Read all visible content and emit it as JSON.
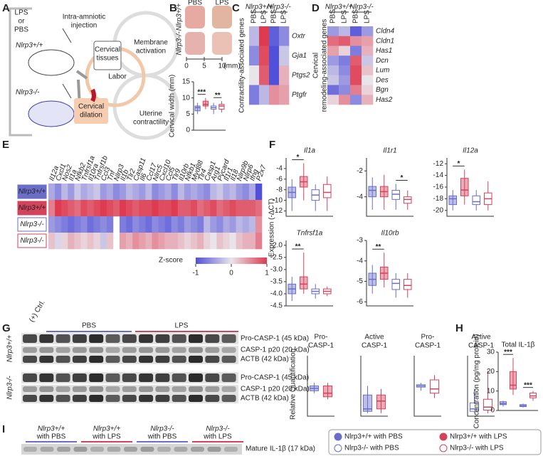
{
  "panel_labels": [
    "A",
    "B",
    "C",
    "D",
    "E",
    "F",
    "G",
    "H",
    "I"
  ],
  "group_styles": [
    {
      "name": "Nlrp3+/+ with PBS",
      "color": "#6a6ec8",
      "filled": true
    },
    {
      "name": "Nlrp3+/+ with LPS",
      "color": "#d2435c",
      "filled": true
    },
    {
      "name": "Nlrp3-/- with PBS",
      "color": "#6a6ec8",
      "filled": false
    },
    {
      "name": "Nlrp3-/- with LPS",
      "color": "#d2435c",
      "filled": false
    }
  ],
  "panel_a": {
    "lps": "LPS",
    "or": "or",
    "pbs": "PBS",
    "injection": [
      "Intra-amniotic",
      "injection"
    ],
    "wt": "Nlrp3+/+",
    "ko": "Nlrp3-/-",
    "tissues": [
      "Cervical",
      "tissues"
    ],
    "labor": "Labor",
    "dilation": [
      "Cervical",
      "dilation"
    ],
    "membrane": [
      "Membrane",
      "activation"
    ],
    "uterine": [
      "Uterine",
      "contractility"
    ]
  },
  "panel_b_photo": {
    "columns": [
      "PBS",
      "LPS"
    ],
    "row_labels": [
      "Nlrp3+/+",
      "Nlrp3-/-"
    ],
    "scale_ticks": [
      0,
      5,
      10
    ],
    "scale_unit": "(mm)"
  },
  "blot_g": {
    "control": "(+) Ctrl.",
    "treatments": [
      "PBS",
      "LPS"
    ],
    "genotypes": [
      "Nlrp3+/+",
      "Nlrp3-/-"
    ],
    "bands": [
      "Pro-CASP-1 (45 kDa)",
      "CASP-1 p20 (20 kDa)",
      "ACTB (42 kDa)"
    ]
  },
  "blot_i": {
    "lanes": [
      [
        "Nlrp3+/+",
        "with PBS"
      ],
      [
        "Nlrp3+/+",
        "with LPS"
      ],
      [
        "Nlrp3-/-",
        "with PBS"
      ],
      [
        "Nlrp3-/-",
        "with LPS"
      ]
    ],
    "band": "Mature IL-1β (17 kDa)"
  },
  "panel_f_ylabel": "Expression (-ΔCT)",
  "panel_g_ylabel": "Relative Quantification",
  "chart_data": [
    {
      "type": "box",
      "ylabel": "Cervical width (mm)",
      "ylim": [
        0,
        15
      ],
      "yticks": [
        0,
        5,
        10,
        15
      ],
      "boxes": [
        [
          5,
          6,
          7,
          7.5,
          8.5
        ],
        [
          6.5,
          7.5,
          8,
          9,
          10
        ],
        [
          5,
          6.5,
          7,
          7.5,
          8.5
        ],
        [
          5.5,
          6.5,
          7.5,
          8,
          9
        ]
      ],
      "sig": [
        {
          "label": "***",
          "between": [
            0,
            1
          ]
        },
        {
          "label": "**",
          "between": [
            2,
            3
          ]
        }
      ]
    },
    {
      "type": "heatmap",
      "ylabel_lines": [
        "Contractility-associated genes"
      ],
      "column_groups": [
        "Nlrp3+/+",
        "Nlrp3-/-"
      ],
      "columns": [
        "PBS",
        "LPS",
        "PBS",
        "LPS"
      ],
      "rows": [
        "Oxtr",
        "Gja1",
        "Ptgs2",
        "Ptgfr"
      ],
      "clim": [
        -1,
        1
      ],
      "colormap": [
        "#5050d8",
        "#e9e4ea",
        "#de3a50"
      ],
      "values": [
        [
          -0.3,
          1,
          -0.9,
          -0.6
        ],
        [
          -0.6,
          0.9,
          -1,
          -0.2
        ],
        [
          0,
          0.8,
          -1,
          0.3
        ],
        [
          -0.7,
          -0.3,
          0.5,
          0.4
        ]
      ]
    },
    {
      "type": "heatmap",
      "ylabel_lines": [
        "Cervical",
        "remodeling-associated genes"
      ],
      "column_groups": [
        "Nlrp3+/+",
        "Nlrp3-/-"
      ],
      "columns": [
        "PBS",
        "LPS",
        "PBS",
        "LPS"
      ],
      "rows": [
        "Cldn4",
        "Cldn1",
        "Has1",
        "Dcn",
        "Lum",
        "Des",
        "Bgn",
        "Has2"
      ],
      "clim": [
        -1,
        1
      ],
      "colormap": [
        "#5050d8",
        "#e9e4ea",
        "#de3a50"
      ],
      "values": [
        [
          -0.5,
          -0.3,
          -0.9,
          -0.5
        ],
        [
          0.7,
          0.8,
          0.5,
          0.4
        ],
        [
          0.4,
          0.1,
          -0.7,
          0.3
        ],
        [
          -0.5,
          -0.7,
          0.8,
          -0.2
        ],
        [
          -0.3,
          -0.6,
          0.9,
          0.2
        ],
        [
          -0.2,
          -0.5,
          0.9,
          0
        ],
        [
          -0.8,
          -0.6,
          0.6,
          0.1
        ],
        [
          0.1,
          0.5,
          -0.6,
          0.3
        ]
      ]
    },
    {
      "type": "heatmap",
      "rows": [
        "Nlrp3+/+",
        "Nlrp3+/+",
        "Nlrp3-/-",
        "Nlrp3-/-"
      ],
      "columns": [
        "Il12a",
        "Cxcl1",
        "Nos2",
        "Il1a",
        "Nfkb2",
        "Tnfrsf1a",
        "Il10ra",
        "Tnfrsf1b",
        "Ccl3",
        "Tnf",
        "Nlrp3",
        "Il1b",
        "Tlr2",
        "Casp11",
        "Il6",
        "Ccl17",
        "Nlrc5",
        "Cxcl10",
        "Ccl5",
        "Tlr9",
        "Il10rb",
        "Nfkb1",
        "Myd88",
        "Tlr4",
        "Casp1",
        "Arg1",
        "Pycard",
        "Il1r1",
        "Il18",
        "Nlrp9b",
        "Nlrp6",
        "Ifng",
        "P2x7"
      ],
      "clim": [
        -1,
        1
      ],
      "colormap": [
        "#5050d8",
        "#e9e4ea",
        "#de3a50"
      ],
      "colorbar": {
        "label": "Z-score",
        "ticks": [
          -1,
          0,
          1
        ]
      },
      "values": [
        [
          -0.4,
          -0.6,
          -0.3,
          -0.5,
          -0.2,
          -0.4,
          -0.3,
          -0.2,
          -0.5,
          -0.4,
          -0.6,
          -0.5,
          -0.3,
          -0.4,
          -0.5,
          -0.3,
          -0.6,
          -0.5,
          -0.4,
          -0.6,
          -0.3,
          -0.5,
          -0.4,
          -0.5,
          -0.6,
          -0.3,
          -0.2,
          -0.4,
          -0.3,
          -0.5,
          -0.6,
          -0.4,
          -1
        ],
        [
          0.6,
          1,
          0.9,
          0.8,
          0.7,
          0.9,
          0.8,
          0.9,
          1,
          0.9,
          0.8,
          1,
          0.9,
          0.8,
          0.9,
          0.9,
          1,
          0.9,
          0.9,
          1,
          0.8,
          0.8,
          0.9,
          0.7,
          0.8,
          0.9,
          0.7,
          0.8,
          0.9,
          0.8,
          0.8,
          0.8,
          0.7
        ],
        [
          -0.5,
          -0.6,
          -0.7,
          -0.8,
          -0.7,
          -0.6,
          -0.8,
          -0.7,
          -0.6,
          -0.7,
          null,
          -0.7,
          -0.8,
          -0.6,
          -0.7,
          -0.8,
          -0.6,
          -0.7,
          -0.8,
          -0.6,
          -0.7,
          -0.5,
          -0.6,
          -0.7,
          -0.3,
          -0.5,
          -0.6,
          -0.4,
          -0.5,
          -0.3,
          -0.4,
          -0.3,
          0.5
        ],
        [
          0.2,
          -0.1,
          0.1,
          0.3,
          0.2,
          0.1,
          0.2,
          0.1,
          -0.2,
          0.2,
          null,
          0.4,
          0.3,
          0.5,
          0.4,
          0.3,
          0.5,
          0.4,
          0.3,
          0.3,
          0.2,
          0.1,
          0.2,
          0.3,
          0.1,
          0,
          0.2,
          0.1,
          0,
          0.2,
          0.3,
          0.3,
          0.6
        ]
      ]
    },
    {
      "type": "box",
      "title": "Il1a",
      "italic": true,
      "ylim": [
        -13,
        -2
      ],
      "yticks": [
        -12,
        -10,
        -8,
        -6,
        -4
      ],
      "boxes": [
        [
          -12,
          -9.5,
          -8.5,
          -7.5,
          -6
        ],
        [
          -10,
          -7.5,
          -6.5,
          -5.5,
          -3
        ],
        [
          -12,
          -10,
          -9,
          -8,
          -7
        ],
        [
          -12,
          -9.5,
          -8.5,
          -7,
          -5.5
        ]
      ],
      "sig": [
        {
          "label": "*",
          "between": [
            0,
            1
          ]
        }
      ]
    },
    {
      "type": "box",
      "title": "Il1r1",
      "italic": true,
      "ylim": [
        -5.5,
        -1
      ],
      "yticks": [
        -4,
        -2
      ],
      "boxes": [
        [
          -5,
          -4,
          -3.5,
          -3.2,
          -2.5
        ],
        [
          -5,
          -4,
          -3.6,
          -3.2,
          -2.3
        ],
        [
          -5,
          -4.2,
          -3.8,
          -3.5,
          -3
        ],
        [
          -5,
          -4.5,
          -4.2,
          -4,
          -3.5
        ]
      ],
      "sig": [
        {
          "label": "*",
          "between": [
            2,
            3
          ]
        }
      ]
    },
    {
      "type": "box",
      "title": "Il12a",
      "italic": true,
      "ylim": [
        -21,
        -11
      ],
      "yticks": [
        -20,
        -18,
        -16,
        -14,
        -12
      ],
      "boxes": [
        [
          -20,
          -19,
          -18,
          -17.5,
          -16.5
        ],
        [
          -19,
          -17.5,
          -16.5,
          -14.5,
          -13
        ],
        [
          -20,
          -19,
          -18.5,
          -17.5,
          -16.5
        ],
        [
          -20,
          -19,
          -18,
          -17,
          -15
        ]
      ],
      "sig": [
        {
          "label": "*",
          "between": [
            0,
            1
          ]
        }
      ]
    },
    {
      "type": "box",
      "title": "Tnfrsf1a",
      "italic": true,
      "ylim": [
        -4.5,
        -1.8
      ],
      "yticks": [
        {
          "value": -2,
          "label": "-2.0"
        },
        -2.5,
        {
          "value": -3,
          "label": "-3.0"
        },
        -3.5,
        {
          "value": -4,
          "label": "-4.0"
        },
        -4.5
      ],
      "boxes": [
        [
          -4.3,
          -4,
          -3.8,
          -3.6,
          -3.3
        ],
        [
          -4,
          -3.8,
          -3.6,
          -3.3,
          -2.3
        ],
        [
          -4.2,
          -4,
          -3.9,
          -3.8,
          -3.6
        ],
        [
          -4.1,
          -4,
          -3.9,
          -3.8,
          -3.7
        ]
      ],
      "sig": [
        {
          "label": "**",
          "between": [
            0,
            1
          ]
        }
      ]
    },
    {
      "type": "box",
      "title": "Il10rb",
      "italic": true,
      "ylim": [
        -6.2,
        -3
      ],
      "yticks": [
        -3,
        -4,
        -5,
        -6
      ],
      "boxes": [
        [
          -5.6,
          -5.2,
          -4.9,
          -4.6,
          -4.2
        ],
        [
          -5.3,
          -4.9,
          -4.6,
          -4.3,
          -3.6
        ],
        [
          -5.8,
          -5.4,
          -5.1,
          -4.9,
          -4.6
        ],
        [
          -5.8,
          -5.4,
          -5.2,
          -4.9,
          -4.6
        ]
      ],
      "sig": [
        {
          "label": "**",
          "between": [
            0,
            1
          ]
        }
      ]
    },
    {
      "type": "box",
      "title_lines": [
        "Pro-",
        "CASP-1"
      ],
      "ylim": [
        0,
        1
      ],
      "groups": [
        0,
        1
      ],
      "boxes": [
        [
          0.38,
          0.42,
          0.46,
          0.5,
          0.55
        ],
        [
          0.28,
          0.32,
          0.38,
          0.5,
          0.55
        ]
      ]
    },
    {
      "type": "box",
      "title_lines": [
        "Active",
        "CASP-1"
      ],
      "ylim": [
        0,
        1
      ],
      "groups": [
        0,
        1
      ],
      "boxes": [
        [
          0.05,
          0.08,
          0.12,
          0.35,
          0.5
        ],
        [
          0.05,
          0.12,
          0.25,
          0.35,
          0.45
        ]
      ]
    },
    {
      "type": "box",
      "title_lines": [
        "Pro-",
        "CASP-1"
      ],
      "ylim": [
        0,
        1
      ],
      "groups": [
        2,
        3
      ],
      "boxes": [
        [
          0.42,
          0.48,
          0.5,
          0.52,
          0.55
        ],
        [
          0.3,
          0.38,
          0.45,
          0.6,
          0.68
        ]
      ]
    },
    {
      "type": "box",
      "title_lines": [
        "Active",
        "CASP-1"
      ],
      "ylim": [
        0,
        1
      ],
      "groups": [
        2,
        3
      ],
      "boxes": [
        [
          0.05,
          0.08,
          0.12,
          0.22,
          0.45
        ],
        [
          0.05,
          0.1,
          0.15,
          0.28,
          0.75
        ]
      ]
    },
    {
      "type": "box",
      "title": "Total IL-1β",
      "ylabel": "Concentration (pg/mg protein)",
      "ylim": [
        0,
        30
      ],
      "yticks": [
        0,
        10,
        20,
        30
      ],
      "boxes": [
        [
          2,
          3,
          3.5,
          4.5,
          5
        ],
        [
          8,
          11,
          13,
          20,
          27
        ],
        [
          1.5,
          2,
          2.5,
          3,
          3.5
        ],
        [
          5,
          6.5,
          7.5,
          9,
          10
        ]
      ],
      "sig": [
        {
          "label": "***",
          "between": [
            0,
            1
          ]
        },
        {
          "label": "***",
          "between": [
            2,
            3
          ]
        }
      ]
    }
  ]
}
